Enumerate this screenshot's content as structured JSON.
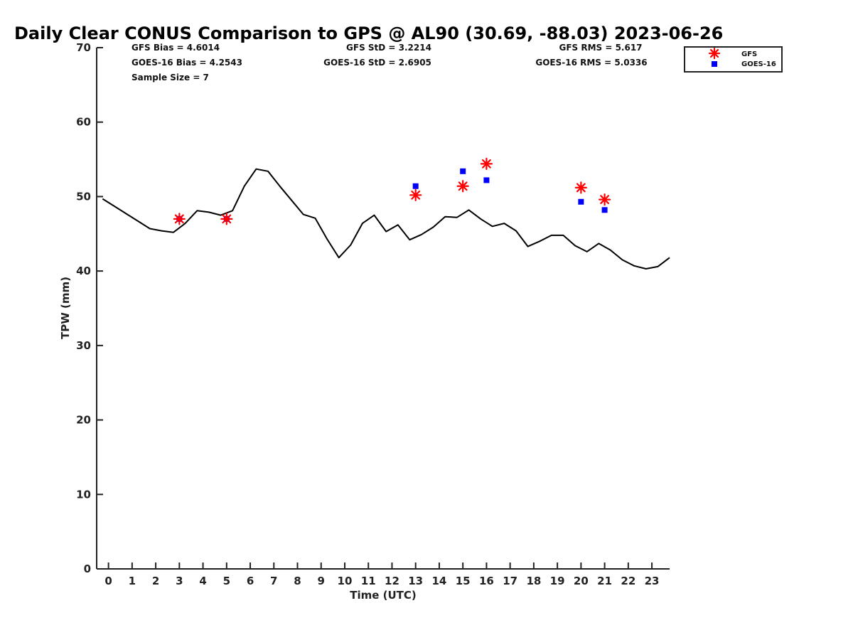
{
  "chart_data": {
    "type": "scatter",
    "title": "Daily Clear CONUS Comparison to GPS @ AL90 (30.69, -88.03) 2023-06-26",
    "xlabel": "Time (UTC)",
    "ylabel": "TPW (mm)",
    "xlim": [
      -0.5,
      23.75
    ],
    "ylim": [
      0,
      70
    ],
    "x_ticks": [
      0,
      1,
      2,
      3,
      4,
      5,
      6,
      7,
      8,
      9,
      10,
      11,
      12,
      13,
      14,
      15,
      16,
      17,
      18,
      19,
      20,
      21,
      22,
      23
    ],
    "y_ticks": [
      0,
      10,
      20,
      30,
      40,
      50,
      60,
      70
    ],
    "grid": false,
    "legend_position": "top-right-outside",
    "series": [
      {
        "kind": "line",
        "color": "#000000",
        "x": [
          -0.25,
          0.25,
          0.75,
          1.25,
          1.75,
          2.25,
          2.75,
          3.25,
          3.75,
          4.25,
          4.75,
          5.25,
          5.75,
          6.25,
          6.75,
          7.25,
          7.75,
          8.25,
          8.75,
          9.25,
          9.75,
          10.25,
          10.75,
          11.25,
          11.75,
          12.25,
          12.75,
          13.25,
          13.75,
          14.25,
          14.75,
          15.25,
          15.75,
          16.25,
          16.75,
          17.25,
          17.75,
          18.25,
          18.75,
          19.25,
          19.75,
          20.25,
          20.75,
          21.25,
          21.75,
          22.25,
          22.75,
          23.25,
          23.75
        ],
        "y": [
          49.7,
          48.7,
          47.7,
          46.7,
          45.7,
          45.4,
          45.2,
          46.4,
          48.1,
          47.9,
          47.5,
          48.1,
          51.4,
          53.7,
          53.4,
          51.4,
          49.5,
          47.6,
          47.1,
          44.3,
          41.8,
          43.5,
          46.4,
          47.5,
          45.3,
          46.2,
          44.2,
          44.9,
          45.9,
          47.3,
          47.2,
          48.2,
          47.0,
          46.0,
          46.4,
          45.4,
          43.3,
          44.0,
          44.8,
          44.8,
          43.4,
          42.6,
          43.7,
          42.8,
          41.5,
          40.7,
          40.3,
          40.6,
          41.8
        ]
      },
      {
        "name": "GFS",
        "kind": "scatter",
        "marker": "asterisk",
        "color": "#ff0000",
        "x": [
          3,
          5,
          13,
          15,
          16,
          20,
          21
        ],
        "y": [
          47.0,
          47.0,
          50.2,
          51.4,
          54.4,
          51.2,
          49.6
        ]
      },
      {
        "name": "GOES-16",
        "kind": "scatter",
        "marker": "square",
        "color": "#0000ff",
        "x": [
          3,
          5,
          13,
          15,
          16,
          20,
          21
        ],
        "y": [
          47.0,
          47.0,
          51.4,
          53.4,
          52.2,
          49.3,
          48.2
        ]
      }
    ],
    "stats": {
      "gfs_bias": "GFS Bias = 4.6014",
      "goes_bias": "GOES-16 Bias = 4.2543",
      "sample_size": "Sample Size = 7",
      "gfs_std": "GFS StD = 3.2214",
      "goes_std": "GOES-16 StD = 2.6905",
      "gfs_rms": "GFS RMS = 5.617",
      "goes_rms": "GOES-16 RMS = 5.0336"
    }
  }
}
